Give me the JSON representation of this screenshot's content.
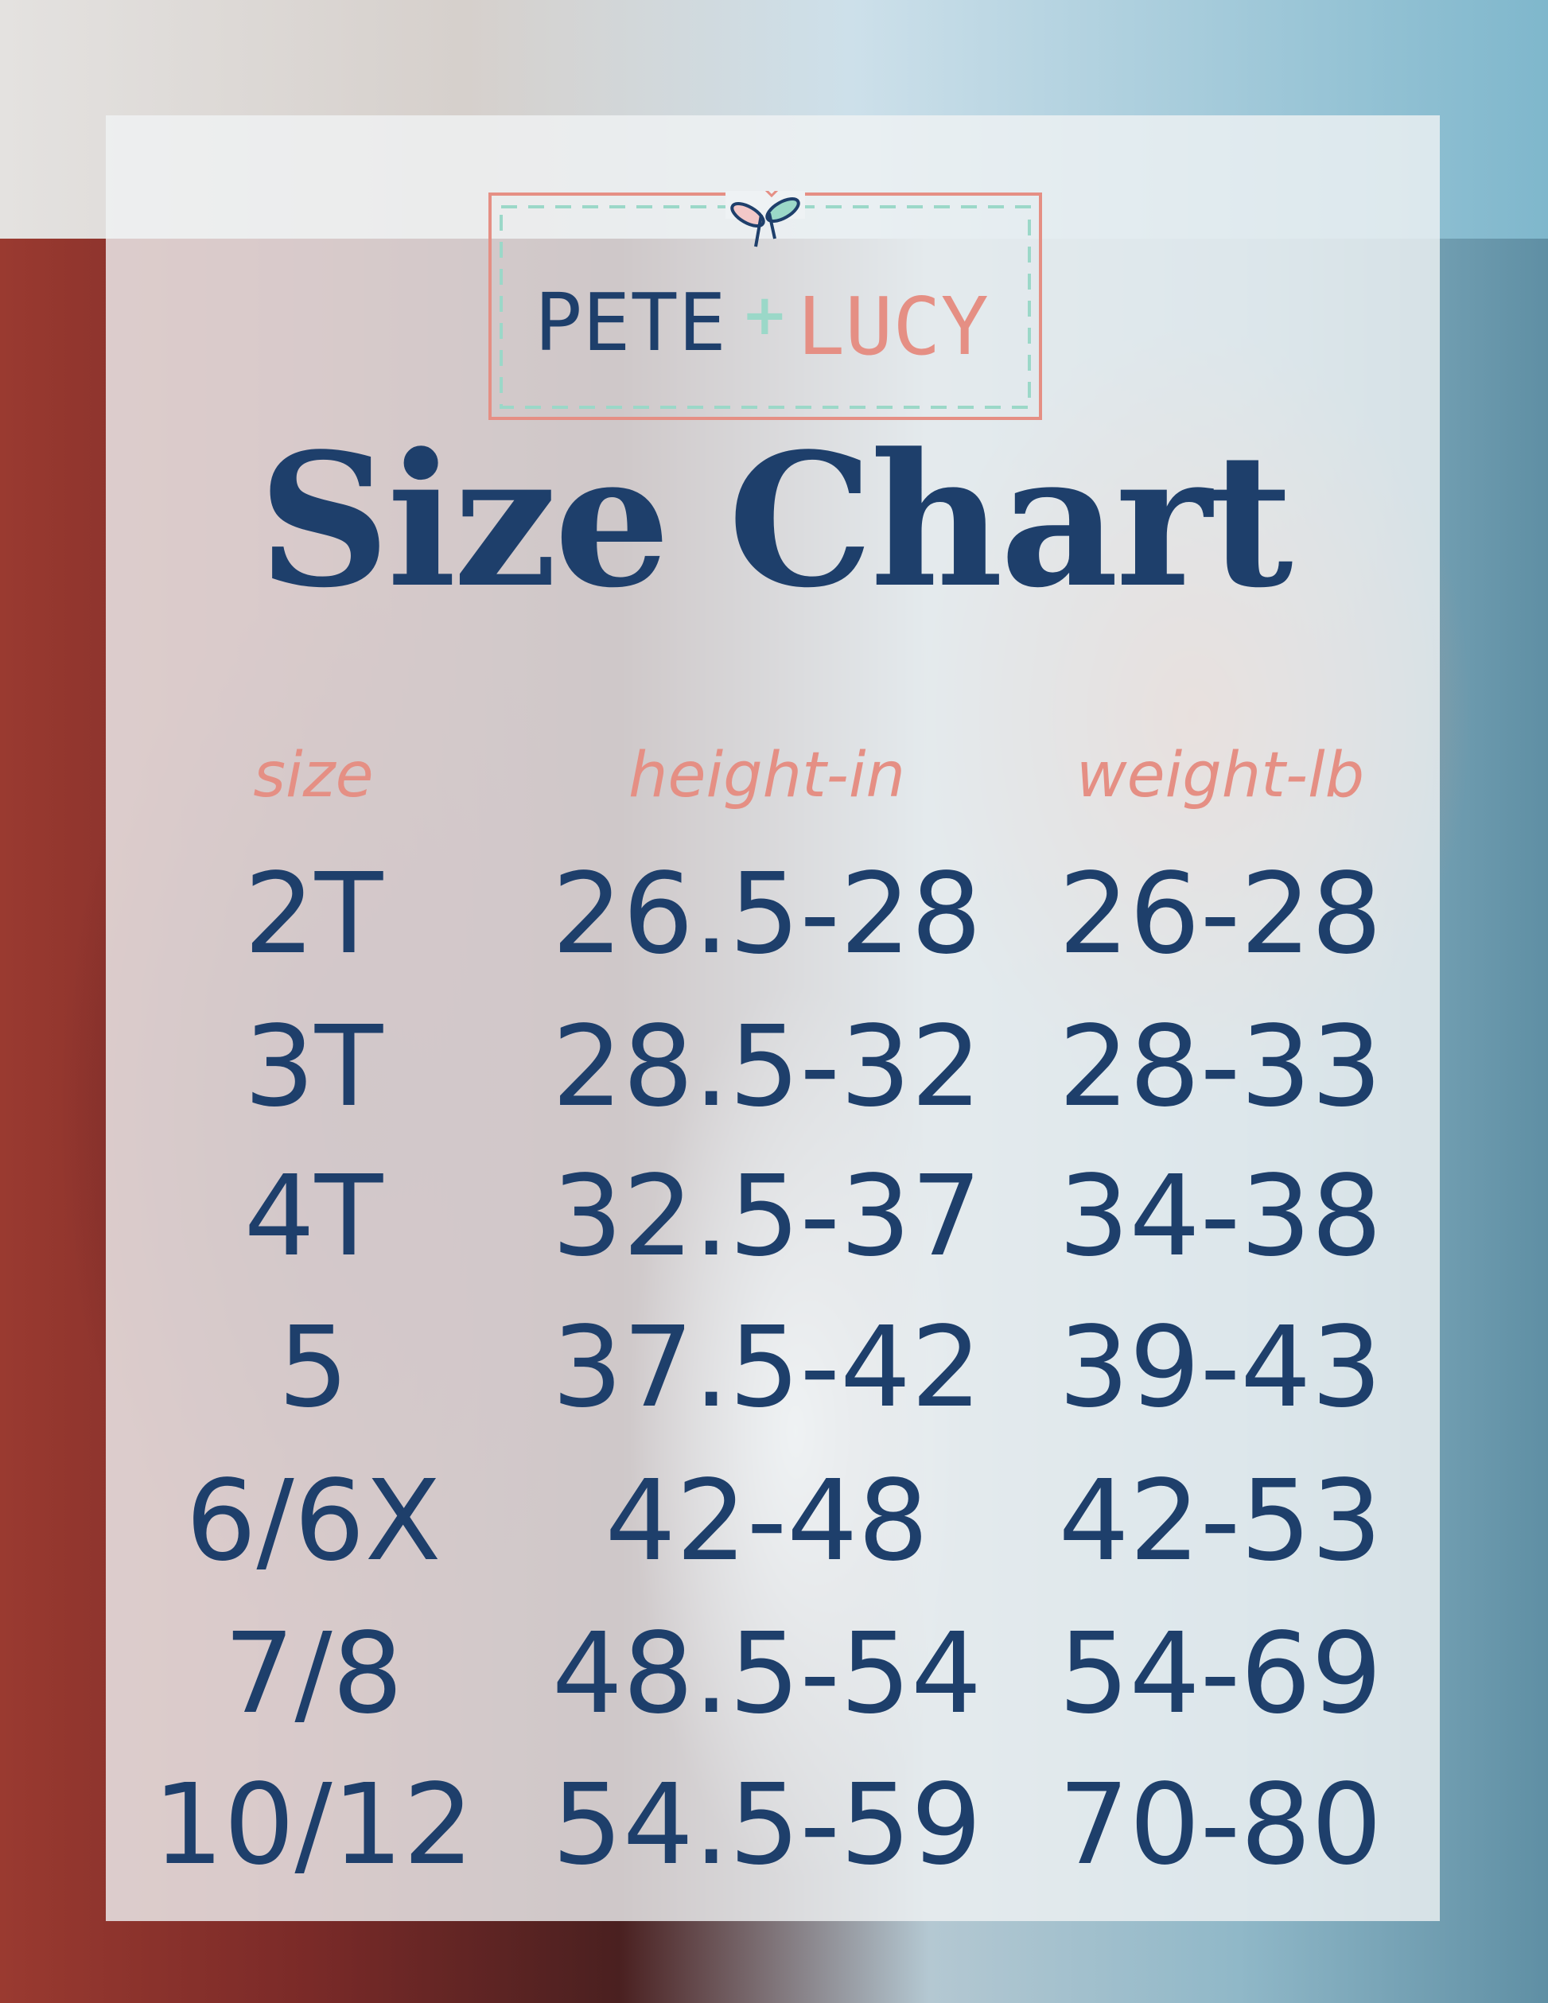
{
  "brand": {
    "name_left": "PETE",
    "plus": "+",
    "name_right": "LUCY",
    "colors": {
      "navy": "#1e3f6b",
      "coral": "#e58f84",
      "mint": "#9bd8c8"
    }
  },
  "title": "Size Chart",
  "table": {
    "headers": [
      "size",
      "height-in",
      "weight-lb"
    ],
    "rows": [
      [
        "2T",
        "26.5-28",
        "26-28"
      ],
      [
        "3T",
        "28.5-32",
        "28-33"
      ],
      [
        "4T",
        "32.5-37",
        "34-38"
      ],
      [
        "5",
        "37.5-42",
        "39-43"
      ],
      [
        "6/6X",
        "42-48",
        "42-53"
      ],
      [
        "7/8",
        "48.5-54",
        "54-69"
      ],
      [
        "10/12",
        "54.5-59",
        "70-80"
      ]
    ]
  }
}
